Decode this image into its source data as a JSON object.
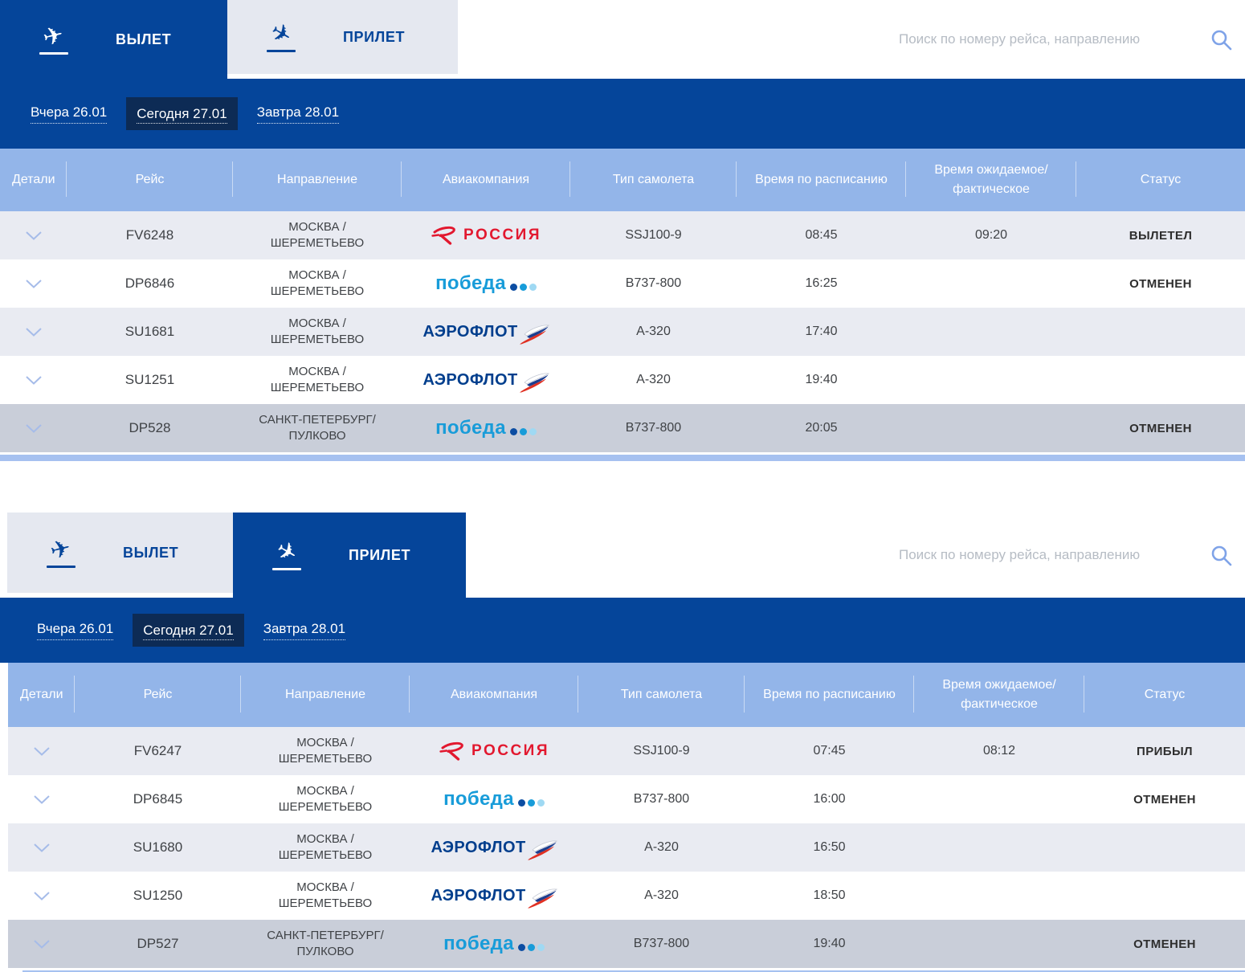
{
  "tabs": {
    "departure": "ВЫЛЕТ",
    "arrival": "ПРИЛЕТ"
  },
  "search": {
    "placeholder": "Поиск по номеру рейса, направлению"
  },
  "dates": {
    "yesterday": "Вчера 26.01",
    "today": "Сегодня 27.01",
    "tomorrow": "Завтра 28.01"
  },
  "columns": {
    "details": "Детали",
    "flight": "Рейс",
    "direction": "Направление",
    "airline": "Авиакомпания",
    "aircraft": "Тип самолета",
    "scheduled": "Время по расписанию",
    "expected": "Время ожидаемое/ фактическое",
    "status": "Статус"
  },
  "airlines": {
    "rossiya": "РОССИЯ",
    "pobeda": "победа",
    "aeroflot": "АЭРОФЛОТ"
  },
  "colors": {
    "primary_blue": "#05459a",
    "header_blue": "#93b5e9",
    "active_date_navy": "#0d2b55",
    "pobeda_blue": "#189cd9",
    "aeroflot_navy": "#003e8d",
    "rossiya_red": "#e2182f"
  },
  "departures": {
    "rows": [
      {
        "flight": "FV6248",
        "direction": "МОСКВА / ШЕРЕМЕТЬЕВО",
        "airline": "rossiya",
        "aircraft": "SSJ100-9",
        "scheduled": "08:45",
        "actual": "09:20",
        "status": "ВЫЛЕТЕЛ"
      },
      {
        "flight": "DP6846",
        "direction": "МОСКВА / ШЕРЕМЕТЬЕВО",
        "airline": "pobeda",
        "aircraft": "B737-800",
        "scheduled": "16:25",
        "actual": "",
        "status": "ОТМЕНЕН"
      },
      {
        "flight": "SU1681",
        "direction": "МОСКВА / ШЕРЕМЕТЬЕВО",
        "airline": "aeroflot",
        "aircraft": "A-320",
        "scheduled": "17:40",
        "actual": "",
        "status": ""
      },
      {
        "flight": "SU1251",
        "direction": "МОСКВА / ШЕРЕМЕТЬЕВО",
        "airline": "aeroflot",
        "aircraft": "A-320",
        "scheduled": "19:40",
        "actual": "",
        "status": ""
      },
      {
        "flight": "DP528",
        "direction": "САНКТ-ПЕТЕРБУРГ/ ПУЛКОВО",
        "airline": "pobeda",
        "aircraft": "B737-800",
        "scheduled": "20:05",
        "actual": "",
        "status": "ОТМЕНЕН"
      }
    ]
  },
  "arrivals": {
    "rows": [
      {
        "flight": "FV6247",
        "direction": "МОСКВА / ШЕРЕМЕТЬЕВО",
        "airline": "rossiya",
        "aircraft": "SSJ100-9",
        "scheduled": "07:45",
        "actual": "08:12",
        "status": "ПРИБЫЛ"
      },
      {
        "flight": "DP6845",
        "direction": "МОСКВА / ШЕРЕМЕТЬЕВО",
        "airline": "pobeda",
        "aircraft": "B737-800",
        "scheduled": "16:00",
        "actual": "",
        "status": "ОТМЕНЕН"
      },
      {
        "flight": "SU1680",
        "direction": "МОСКВА / ШЕРЕМЕТЬЕВО",
        "airline": "aeroflot",
        "aircraft": "A-320",
        "scheduled": "16:50",
        "actual": "",
        "status": ""
      },
      {
        "flight": "SU1250",
        "direction": "МОСКВА / ШЕРЕМЕТЬЕВО",
        "airline": "aeroflot",
        "aircraft": "A-320",
        "scheduled": "18:50",
        "actual": "",
        "status": ""
      },
      {
        "flight": "DP527",
        "direction": "САНКТ-ПЕТЕРБУРГ/ ПУЛКОВО",
        "airline": "pobeda",
        "aircraft": "B737-800",
        "scheduled": "19:40",
        "actual": "",
        "status": "ОТМЕНЕН"
      }
    ]
  }
}
